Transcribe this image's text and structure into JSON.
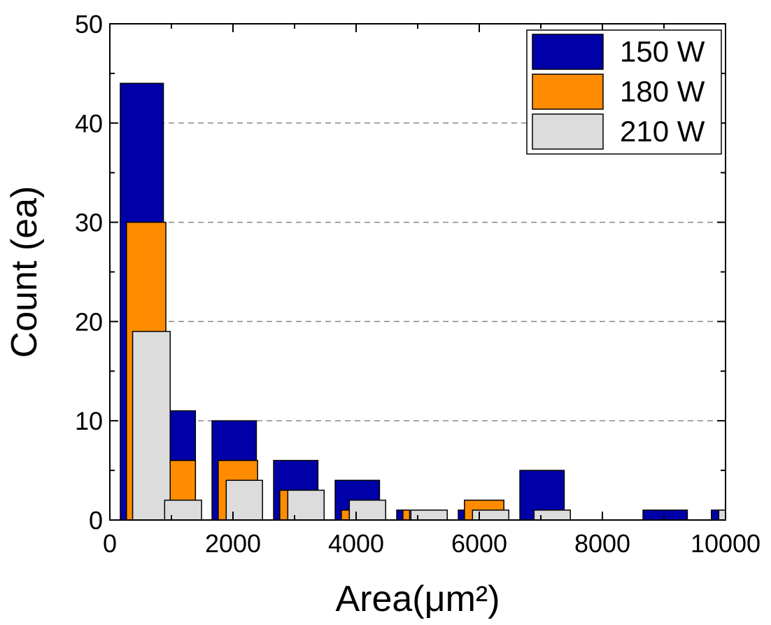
{
  "chart_data": {
    "type": "bar",
    "xlabel": "Area(μm²)",
    "ylabel": "Count (ea)",
    "xlim": [
      0,
      10000
    ],
    "ylim": [
      0,
      50
    ],
    "x_ticks": [
      "0",
      "2000",
      "4000",
      "6000",
      "8000",
      "10000"
    ],
    "y_ticks": [
      "0",
      "10",
      "20",
      "30",
      "40",
      "50"
    ],
    "grid": "horizontal dashed",
    "legend_position": "top-right",
    "series": [
      {
        "name": "150 W",
        "color": "#0000a8",
        "bars": [
          {
            "x0": 170,
            "x1": 870,
            "y": 44
          },
          {
            "x0": 870,
            "x1": 1390,
            "y": 11
          },
          {
            "x0": 1660,
            "x1": 2380,
            "y": 10
          },
          {
            "x0": 2660,
            "x1": 3380,
            "y": 6
          },
          {
            "x0": 3660,
            "x1": 4380,
            "y": 4
          },
          {
            "x0": 4660,
            "x1": 4810,
            "y": 1
          },
          {
            "x0": 5660,
            "x1": 5810,
            "y": 1
          },
          {
            "x0": 6660,
            "x1": 7380,
            "y": 5
          },
          {
            "x0": 8660,
            "x1": 9380,
            "y": 1
          },
          {
            "x0": 9770,
            "x1": 10000,
            "y": 1
          }
        ]
      },
      {
        "name": "180 W",
        "color": "#ff8c00",
        "bars": [
          {
            "x0": 270,
            "x1": 910,
            "y": 30
          },
          {
            "x0": 960,
            "x1": 1390,
            "y": 6
          },
          {
            "x0": 1760,
            "x1": 2400,
            "y": 6
          },
          {
            "x0": 2760,
            "x1": 2940,
            "y": 3
          },
          {
            "x0": 3760,
            "x1": 3890,
            "y": 1
          },
          {
            "x0": 4760,
            "x1": 4870,
            "y": 1
          },
          {
            "x0": 5760,
            "x1": 6400,
            "y": 2
          }
        ]
      },
      {
        "name": "210 W",
        "color": "#dcdcdc",
        "bars": [
          {
            "x0": 370,
            "x1": 980,
            "y": 19
          },
          {
            "x0": 890,
            "x1": 1490,
            "y": 2
          },
          {
            "x0": 1890,
            "x1": 2480,
            "y": 4
          },
          {
            "x0": 2890,
            "x1": 3480,
            "y": 3
          },
          {
            "x0": 3890,
            "x1": 4480,
            "y": 2
          },
          {
            "x0": 4890,
            "x1": 5480,
            "y": 1
          },
          {
            "x0": 5890,
            "x1": 6480,
            "y": 1
          },
          {
            "x0": 6890,
            "x1": 7480,
            "y": 1
          },
          {
            "x0": 9890,
            "x1": 10000,
            "y": 1
          }
        ]
      }
    ]
  }
}
